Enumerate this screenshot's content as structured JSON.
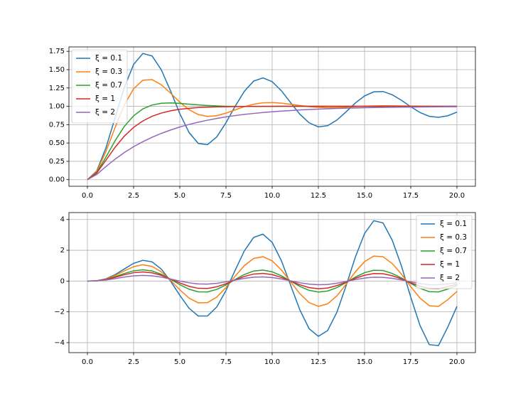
{
  "chart_data": [
    {
      "type": "line",
      "legend": "upper left",
      "grid": true,
      "x": [
        0,
        0.5,
        1,
        1.5,
        2,
        2.5,
        3,
        3.5,
        4,
        4.5,
        5,
        5.5,
        6,
        6.5,
        7,
        7.5,
        8,
        8.5,
        9,
        9.5,
        10,
        10.5,
        11,
        11.5,
        12,
        12.5,
        13,
        13.5,
        14,
        14.5,
        15,
        15.5,
        16,
        16.5,
        17,
        17.5,
        18,
        18.5,
        19,
        19.5,
        20
      ],
      "xlim": [
        -1,
        21
      ],
      "xticks": [
        {
          "value": 0,
          "label": "0.0"
        },
        {
          "value": 2.5,
          "label": "2.5"
        },
        {
          "value": 5,
          "label": "5.0"
        },
        {
          "value": 7.5,
          "label": "7.5"
        },
        {
          "value": 10,
          "label": "10.0"
        },
        {
          "value": 12.5,
          "label": "12.5"
        },
        {
          "value": 15,
          "label": "15.0"
        },
        {
          "value": 17.5,
          "label": "17.5"
        },
        {
          "value": 20,
          "label": "20.0"
        }
      ],
      "ylim": [
        -0.09,
        1.81
      ],
      "yticks": [
        {
          "value": 0,
          "label": "0.00"
        },
        {
          "value": 0.25,
          "label": "0.25"
        },
        {
          "value": 0.5,
          "label": "0.50"
        },
        {
          "value": 0.75,
          "label": "0.75"
        },
        {
          "value": 1,
          "label": "1.00"
        },
        {
          "value": 1.25,
          "label": "1.25"
        },
        {
          "value": 1.5,
          "label": "1.50"
        },
        {
          "value": 1.75,
          "label": "1.75"
        }
      ],
      "series": [
        {
          "name": "ξ = 0.1",
          "color": "#1f77b4",
          "values": [
            0,
            0.118,
            0.431,
            0.846,
            1.259,
            1.571,
            1.72,
            1.687,
            1.498,
            1.211,
            0.901,
            0.644,
            0.494,
            0.477,
            0.583,
            0.776,
            1.003,
            1.207,
            1.344,
            1.388,
            1.336,
            1.212,
            1.05,
            0.892,
            0.775,
            0.72,
            0.736,
            0.812,
            0.925,
            1.045,
            1.142,
            1.198,
            1.202,
            1.158,
            1.082,
            0.994,
            0.916,
            0.864,
            0.85,
            0.871,
            0.921
          ]
        },
        {
          "name": "ξ = 0.3",
          "color": "#ff7f0e",
          "values": [
            0,
            0.111,
            0.382,
            0.712,
            1.019,
            1.24,
            1.356,
            1.365,
            1.294,
            1.18,
            1.057,
            0.954,
            0.888,
            0.862,
            0.872,
            0.907,
            0.952,
            0.996,
            1.029,
            1.048,
            1.051,
            1.043,
            1.028,
            1.011,
            0.996,
            0.986,
            0.981,
            0.983,
            0.989,
            0.996,
            1.002,
            1.006,
            1.008,
            1.007,
            1.006,
            1.003,
            1.001,
            0.999,
            0.998,
            0.998,
            0.999
          ]
        },
        {
          "name": "ξ = 0.7",
          "color": "#2ca02c",
          "values": [
            0,
            0.098,
            0.306,
            0.531,
            0.726,
            0.871,
            0.965,
            1.018,
            1.042,
            1.046,
            1.04,
            1.03,
            1.02,
            1.011,
            1.005,
            1.001,
            0.999,
            0.998,
            0.998,
            0.999,
            0.999,
            1,
            1,
            1,
            1,
            1,
            1,
            1,
            1,
            1,
            1,
            1,
            1,
            1,
            1,
            1,
            1,
            1,
            1,
            1,
            1
          ]
        },
        {
          "name": "ξ = 1",
          "color": "#d62728",
          "values": [
            0,
            0.09,
            0.264,
            0.442,
            0.594,
            0.713,
            0.801,
            0.864,
            0.908,
            0.939,
            0.96,
            0.973,
            0.983,
            0.989,
            0.993,
            0.995,
            0.997,
            0.998,
            0.999,
            0.999,
            1,
            1,
            1,
            1,
            1,
            1,
            1,
            1,
            1,
            1,
            1,
            1,
            1,
            1,
            1,
            1,
            1,
            1,
            1,
            1,
            1
          ]
        },
        {
          "name": "ξ = 2",
          "color": "#9467bd",
          "values": [
            0,
            0.07,
            0.178,
            0.28,
            0.37,
            0.449,
            0.518,
            0.578,
            0.631,
            0.677,
            0.718,
            0.753,
            0.784,
            0.811,
            0.835,
            0.856,
            0.874,
            0.89,
            0.903,
            0.916,
            0.926,
            0.935,
            0.943,
            0.951,
            0.957,
            0.962,
            0.967,
            0.971,
            0.975,
            0.978,
            0.981,
            0.983,
            0.985,
            0.987,
            0.989,
            0.99,
            0.991,
            0.992,
            0.993,
            0.994,
            0.995
          ]
        }
      ]
    },
    {
      "type": "line",
      "legend": "upper right",
      "grid": true,
      "x": [
        0,
        0.5,
        1,
        1.5,
        2,
        2.5,
        3,
        3.5,
        4,
        4.5,
        5,
        5.5,
        6,
        6.5,
        7,
        7.5,
        8,
        8.5,
        9,
        9.5,
        10,
        10.5,
        11,
        11.5,
        12,
        12.5,
        13,
        13.5,
        14,
        14.5,
        15,
        15.5,
        16,
        16.5,
        17,
        17.5,
        18,
        18.5,
        19,
        19.5,
        20
      ],
      "xlim": [
        -1,
        21
      ],
      "xticks": [
        {
          "value": 0,
          "label": "0.0"
        },
        {
          "value": 2.5,
          "label": "2.5"
        },
        {
          "value": 5,
          "label": "5.0"
        },
        {
          "value": 7.5,
          "label": "7.5"
        },
        {
          "value": 10,
          "label": "10.0"
        },
        {
          "value": 12.5,
          "label": "12.5"
        },
        {
          "value": 15,
          "label": "15.0"
        },
        {
          "value": 17.5,
          "label": "17.5"
        },
        {
          "value": 20,
          "label": "20.0"
        }
      ],
      "ylim": [
        -4.65,
        4.45
      ],
      "yticks": [
        {
          "value": -4,
          "label": "−4"
        },
        {
          "value": -2,
          "label": "−2"
        },
        0,
        2,
        4
      ],
      "series": [
        {
          "name": "ξ = 0.1",
          "color": "#1f77b4",
          "values": [
            0,
            0.022,
            0.144,
            0.417,
            0.786,
            1.151,
            1.35,
            1.248,
            0.778,
            -0.001,
            -0.924,
            -1.764,
            -2.271,
            -2.268,
            -1.685,
            -0.613,
            0.713,
            1.975,
            2.836,
            3.046,
            2.516,
            1.318,
            -0.272,
            -1.877,
            -3.095,
            -3.589,
            -3.217,
            -2.035,
            -0.309,
            1.55,
            3.089,
            3.922,
            3.779,
            2.649,
            0.966,
            -1.046,
            -2.882,
            -4.128,
            -4.194,
            -3.0,
            -1.646
          ]
        },
        {
          "name": "ξ = 0.3",
          "color": "#ff7f0e",
          "values": [
            0,
            0.019,
            0.13,
            0.362,
            0.662,
            0.935,
            1.057,
            0.953,
            0.599,
            0.051,
            -0.568,
            -1.105,
            -1.414,
            -1.398,
            -1.043,
            -0.423,
            0.323,
            1.01,
            1.47,
            1.582,
            1.314,
            0.721,
            -0.054,
            -0.824,
            -1.4,
            -1.64,
            -1.481,
            -0.963,
            -0.21,
            0.598,
            1.263,
            1.627,
            1.583,
            1.135,
            0.449,
            -0.364,
            -1.102,
            -1.601,
            -1.645,
            -1.212,
            -0.679
          ]
        },
        {
          "name": "ξ = 0.7",
          "color": "#2ca02c",
          "values": [
            0,
            0.017,
            0.11,
            0.285,
            0.493,
            0.664,
            0.732,
            0.656,
            0.437,
            0.118,
            -0.231,
            -0.528,
            -0.7,
            -0.705,
            -0.542,
            -0.248,
            0.105,
            0.431,
            0.652,
            0.713,
            0.6,
            0.34,
            -0.003,
            -0.345,
            -0.603,
            -0.713,
            -0.648,
            -0.425,
            -0.098,
            0.254,
            0.543,
            0.702,
            0.684,
            0.491,
            0.197,
            -0.154,
            -0.472,
            -0.687,
            -0.706,
            -0.521,
            -0.292
          ]
        },
        {
          "name": "ξ = 1",
          "color": "#d62728",
          "values": [
            0,
            0.016,
            0.098,
            0.244,
            0.411,
            0.544,
            0.595,
            0.536,
            0.373,
            0.136,
            -0.122,
            -0.341,
            -0.472,
            -0.483,
            -0.373,
            -0.171,
            0.074,
            0.302,
            0.456,
            0.499,
            0.42,
            0.238,
            -0.002,
            -0.242,
            -0.422,
            -0.499,
            -0.454,
            -0.297,
            -0.068,
            0.177,
            0.38,
            0.491,
            0.479,
            0.344,
            0.138,
            -0.108,
            -0.33,
            -0.481,
            -0.494,
            -0.365,
            -0.204
          ]
        },
        {
          "name": "ξ = 2",
          "color": "#9467bd",
          "values": [
            0,
            0.013,
            0.07,
            0.162,
            0.262,
            0.338,
            0.368,
            0.34,
            0.256,
            0.133,
            0,
            -0.115,
            -0.186,
            -0.197,
            -0.147,
            -0.051,
            0.068,
            0.178,
            0.252,
            0.27,
            0.228,
            0.135,
            0.013,
            -0.109,
            -0.2,
            -0.24,
            -0.219,
            -0.141,
            -0.028,
            0.094,
            0.195,
            0.25,
            0.243,
            0.175,
            0.072,
            -0.051,
            -0.163,
            -0.238,
            -0.245,
            -0.181,
            -0.101
          ]
        }
      ]
    }
  ]
}
